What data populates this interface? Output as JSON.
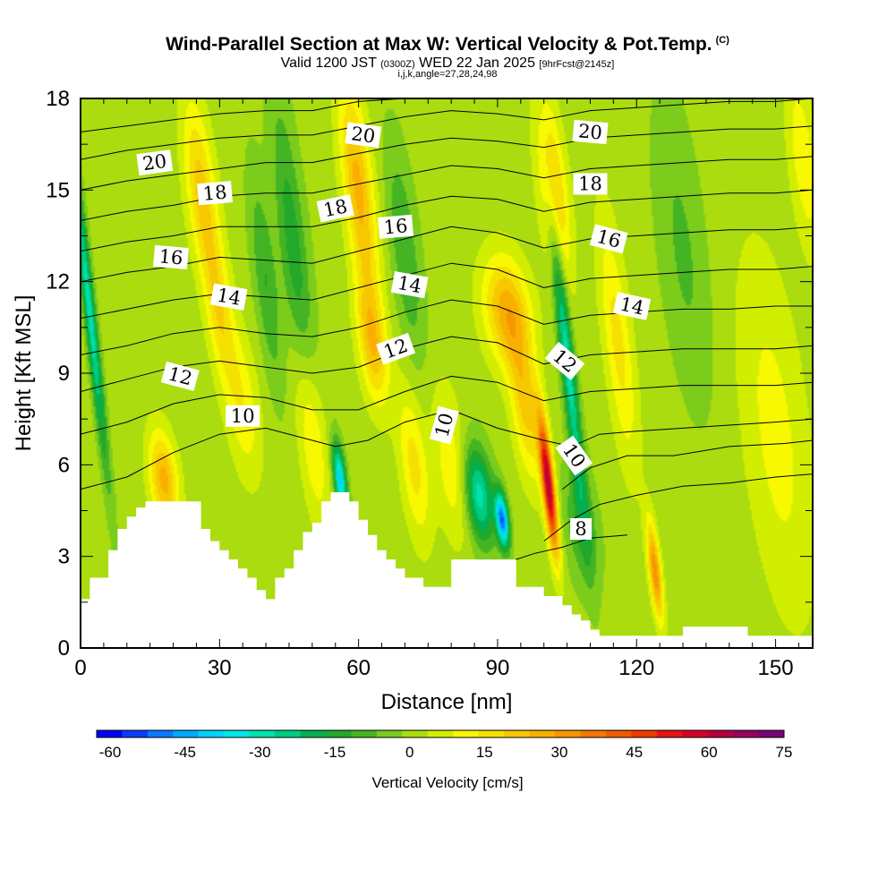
{
  "header": {
    "title": "Wind-Parallel Section at Max W: Vertical Velocity & Pot.Temp.",
    "title_mark": "(C)",
    "valid_prefix": "Valid 1200 JST",
    "valid_utc": "(0300Z)",
    "valid_date": "WED 22 Jan 2025",
    "forecast": "[9hrFcst@2145z]",
    "indices": "i,j,k,angle=27,28,24,98"
  },
  "chart_data": {
    "type": "heatmap",
    "title": "Wind-Parallel Section at Max W: Vertical Velocity & Pot.Temp.",
    "xlabel": "Distance [nm]",
    "ylabel": "Height [Kft MSL]",
    "xlim": [
      0,
      158
    ],
    "ylim": [
      0,
      18
    ],
    "x_ticks": [
      0,
      30,
      60,
      90,
      120,
      150
    ],
    "y_ticks": [
      0,
      3,
      6,
      9,
      12,
      15,
      18
    ],
    "colorbar": {
      "label": "Vertical Velocity [cm/s]",
      "ticks": [
        -60,
        -45,
        -30,
        -15,
        0,
        15,
        30,
        45,
        60,
        75
      ],
      "range": [
        -60,
        75
      ],
      "step": 5,
      "colors": [
        "#0000ff",
        "#0a3cff",
        "#0a78ff",
        "#00aaff",
        "#00d2ff",
        "#00e6e6",
        "#00e0b0",
        "#00cc80",
        "#00b050",
        "#22a82a",
        "#44b424",
        "#7ccc1c",
        "#aadc10",
        "#d2ee00",
        "#f8f800",
        "#f5e100",
        "#f7c800",
        "#faaf00",
        "#f79600",
        "#f57800",
        "#f05a00",
        "#ee3c00",
        "#e61414",
        "#d2002a",
        "#b4003c",
        "#96005a",
        "#780078"
      ]
    },
    "terrain_x": [
      0,
      2,
      2,
      6,
      6,
      8,
      8,
      10,
      10,
      12,
      12,
      14,
      14,
      17,
      17,
      20,
      20,
      26,
      26,
      28,
      28,
      30,
      30,
      32,
      32,
      34,
      34,
      36,
      36,
      38,
      38,
      40,
      40,
      42,
      42,
      44,
      44,
      46,
      46,
      48,
      48,
      50,
      50,
      52,
      52,
      54,
      54,
      58,
      58,
      60,
      60,
      62,
      62,
      64,
      64,
      66,
      66,
      68,
      68,
      70,
      70,
      72,
      72,
      74,
      74,
      78,
      78,
      80,
      80,
      84,
      84,
      86,
      86,
      94,
      94,
      96,
      96,
      100,
      100,
      104,
      104,
      106,
      106,
      108,
      108,
      110,
      110,
      112,
      112,
      114,
      114,
      116,
      116,
      118,
      118,
      120,
      120,
      124,
      124,
      130,
      130,
      144,
      144,
      150,
      150,
      158
    ],
    "terrain_y": [
      1.6,
      1.6,
      2.3,
      2.3,
      3.2,
      3.2,
      3.9,
      3.9,
      4.3,
      4.3,
      4.6,
      4.6,
      4.8,
      4.8,
      4.8,
      4.8,
      4.8,
      4.8,
      3.9,
      3.9,
      3.5,
      3.5,
      3.2,
      3.2,
      2.9,
      2.9,
      2.6,
      2.6,
      2.3,
      2.3,
      1.9,
      1.9,
      1.6,
      1.6,
      2.3,
      2.3,
      2.6,
      2.6,
      3.2,
      3.2,
      3.8,
      3.8,
      4.1,
      4.1,
      4.8,
      4.8,
      5.1,
      5.1,
      4.8,
      4.8,
      4.2,
      4.2,
      3.7,
      3.7,
      3.2,
      3.2,
      2.9,
      2.9,
      2.6,
      2.6,
      2.3,
      2.3,
      2.3,
      2.3,
      2.0,
      2.0,
      2.0,
      2.0,
      2.9,
      2.9,
      2.9,
      2.9,
      2.9,
      2.9,
      2.0,
      2.0,
      2.0,
      2.0,
      1.7,
      1.7,
      1.4,
      1.4,
      1.1,
      1.1,
      0.9,
      0.9,
      0.6,
      0.6,
      0.4,
      0.4,
      0.4,
      0.4,
      0.4,
      0.4,
      0.4,
      0.4,
      0.4,
      0.4,
      0.4,
      0.4,
      0.7,
      0.7,
      0.4,
      0.4,
      0.4,
      0.4
    ],
    "w_features": [
      {
        "x": 2,
        "y": 11,
        "w": -30,
        "sx": 1.2,
        "sy": 5
      },
      {
        "x": 18,
        "y": 5.5,
        "w": 25,
        "sx": 3,
        "sy": 1.6
      },
      {
        "x": 26,
        "y": 15,
        "w": 20,
        "sx": 3.2,
        "sy": 3
      },
      {
        "x": 30,
        "y": 11,
        "w": 15,
        "sx": 2.8,
        "sy": 2.5
      },
      {
        "x": 35,
        "y": 8,
        "w": 12,
        "sx": 3.5,
        "sy": 2.5
      },
      {
        "x": 40,
        "y": 12,
        "w": -12,
        "sx": 2.5,
        "sy": 3.5
      },
      {
        "x": 46,
        "y": 13,
        "w": -15,
        "sx": 3,
        "sy": 5
      },
      {
        "x": 50,
        "y": 7,
        "w": 15,
        "sx": 3,
        "sy": 3
      },
      {
        "x": 56,
        "y": 5.5,
        "w": -40,
        "sx": 1.3,
        "sy": 1.2
      },
      {
        "x": 60,
        "y": 15,
        "w": 25,
        "sx": 3.2,
        "sy": 3.5
      },
      {
        "x": 63,
        "y": 10,
        "w": 22,
        "sx": 3,
        "sy": 2
      },
      {
        "x": 70,
        "y": 13,
        "w": -12,
        "sx": 3,
        "sy": 3.5
      },
      {
        "x": 72,
        "y": 6,
        "w": 15,
        "sx": 3,
        "sy": 2.5
      },
      {
        "x": 80,
        "y": 6,
        "w": 12,
        "sx": 3.5,
        "sy": 2.5
      },
      {
        "x": 86,
        "y": 5,
        "w": -30,
        "sx": 3,
        "sy": 1.6
      },
      {
        "x": 91,
        "y": 4.2,
        "w": -50,
        "sx": 1.3,
        "sy": 0.9
      },
      {
        "x": 92,
        "y": 11,
        "w": 25,
        "sx": 5,
        "sy": 1.8
      },
      {
        "x": 96,
        "y": 8,
        "w": 20,
        "sx": 3,
        "sy": 2.5
      },
      {
        "x": 101,
        "y": 5.3,
        "w": 60,
        "sx": 1.3,
        "sy": 2.2
      },
      {
        "x": 102,
        "y": 15,
        "w": 22,
        "sx": 3,
        "sy": 3
      },
      {
        "x": 105,
        "y": 9.5,
        "w": -30,
        "sx": 1.5,
        "sy": 5
      },
      {
        "x": 108,
        "y": 4,
        "w": -12,
        "sx": 3.5,
        "sy": 2
      },
      {
        "x": 116,
        "y": 10,
        "w": 15,
        "sx": 3,
        "sy": 4
      },
      {
        "x": 124,
        "y": 2.5,
        "w": 32,
        "sx": 1.3,
        "sy": 1.6
      },
      {
        "x": 130,
        "y": 13,
        "w": -8,
        "sx": 5,
        "sy": 5
      },
      {
        "x": 150,
        "y": 7,
        "w": 10,
        "sx": 7,
        "sy": 6
      },
      {
        "x": 156,
        "y": 16,
        "w": 12,
        "sx": 3,
        "sy": 3
      }
    ],
    "theta_contours": [
      {
        "level": 6,
        "x": [
          86,
          92,
          98,
          104,
          110,
          118
        ],
        "y": [
          2.6,
          2.8,
          3.1,
          3.3,
          3.6,
          3.7
        ]
      },
      {
        "level": 8,
        "x": [
          100,
          106,
          112,
          120,
          130,
          140,
          150,
          158
        ],
        "y": [
          3.5,
          4.2,
          4.7,
          5.0,
          5.3,
          5.4,
          5.6,
          5.7
        ]
      },
      {
        "level": 9,
        "x": [
          104,
          110,
          118,
          128,
          140,
          152,
          158
        ],
        "y": [
          5.2,
          5.9,
          6.3,
          6.3,
          6.6,
          6.7,
          6.8
        ]
      },
      {
        "level": 10,
        "x": [
          0,
          10,
          20,
          30,
          40,
          50,
          55,
          62,
          70,
          80,
          90,
          100,
          106,
          112,
          120,
          130,
          140,
          150,
          158
        ],
        "y": [
          5.2,
          5.6,
          6.4,
          7.0,
          7.2,
          6.8,
          6.6,
          6.8,
          7.4,
          7.8,
          7.2,
          6.8,
          6.6,
          7.0,
          7.1,
          7.2,
          7.3,
          7.4,
          7.5
        ]
      },
      {
        "level": 11,
        "x": [
          0,
          10,
          20,
          30,
          40,
          50,
          60,
          70,
          80,
          90,
          100,
          110,
          120,
          130,
          140,
          150,
          158
        ],
        "y": [
          7.0,
          7.4,
          8.0,
          8.3,
          8.2,
          7.8,
          7.8,
          8.4,
          8.9,
          8.7,
          8.1,
          8.4,
          8.5,
          8.6,
          8.6,
          8.6,
          8.7
        ]
      },
      {
        "level": 12,
        "x": [
          0,
          10,
          20,
          30,
          40,
          50,
          60,
          70,
          80,
          90,
          100,
          110,
          120,
          130,
          140,
          150,
          158
        ],
        "y": [
          8.4,
          8.8,
          9.2,
          9.4,
          9.2,
          9.0,
          9.2,
          9.8,
          10.2,
          10.0,
          9.3,
          9.6,
          9.7,
          9.8,
          9.8,
          9.8,
          9.9
        ]
      },
      {
        "level": 13,
        "x": [
          0,
          10,
          20,
          30,
          40,
          50,
          60,
          70,
          80,
          90,
          100,
          110,
          120,
          130,
          140,
          150,
          158
        ],
        "y": [
          9.6,
          9.9,
          10.3,
          10.5,
          10.3,
          10.2,
          10.5,
          11.0,
          11.4,
          11.2,
          10.6,
          10.9,
          11.0,
          11.1,
          11.1,
          11.2,
          11.2
        ]
      },
      {
        "level": 14,
        "x": [
          0,
          10,
          20,
          30,
          40,
          50,
          60,
          70,
          80,
          90,
          100,
          110,
          120,
          130,
          140,
          150,
          158
        ],
        "y": [
          10.8,
          11.1,
          11.4,
          11.6,
          11.5,
          11.4,
          11.8,
          12.2,
          12.6,
          12.4,
          11.8,
          12.1,
          12.2,
          12.3,
          12.4,
          12.4,
          12.5
        ]
      },
      {
        "level": 15,
        "x": [
          0,
          10,
          20,
          30,
          40,
          50,
          60,
          70,
          80,
          90,
          100,
          110,
          120,
          130,
          140,
          150,
          158
        ],
        "y": [
          12.0,
          12.3,
          12.5,
          12.8,
          12.7,
          12.6,
          13.0,
          13.4,
          13.8,
          13.6,
          13.1,
          13.4,
          13.5,
          13.6,
          13.7,
          13.7,
          13.8
        ]
      },
      {
        "level": 16,
        "x": [
          0,
          10,
          20,
          30,
          40,
          50,
          60,
          70,
          80,
          90,
          100,
          110,
          120,
          130,
          140,
          150,
          158
        ],
        "y": [
          13.0,
          13.3,
          13.5,
          13.8,
          13.8,
          13.8,
          14.1,
          14.5,
          14.8,
          14.7,
          14.3,
          14.6,
          14.7,
          14.8,
          14.9,
          14.9,
          15.0
        ]
      },
      {
        "level": 17,
        "x": [
          0,
          10,
          20,
          30,
          40,
          50,
          60,
          70,
          80,
          90,
          100,
          110,
          120,
          130,
          140,
          150,
          158
        ],
        "y": [
          14.0,
          14.3,
          14.5,
          14.8,
          14.9,
          14.9,
          15.2,
          15.5,
          15.8,
          15.7,
          15.4,
          15.7,
          15.8,
          15.9,
          16.0,
          16.0,
          16.1
        ]
      },
      {
        "level": 18,
        "x": [
          0,
          10,
          20,
          30,
          40,
          50,
          60,
          70,
          80,
          90,
          100,
          110,
          120,
          130,
          140,
          150,
          158
        ],
        "y": [
          15.0,
          15.3,
          15.5,
          15.7,
          15.9,
          15.9,
          16.2,
          16.5,
          16.7,
          16.6,
          16.4,
          16.7,
          16.8,
          16.9,
          17.0,
          17.0,
          17.1
        ]
      },
      {
        "level": 19,
        "x": [
          0,
          10,
          20,
          30,
          40,
          50,
          60,
          70,
          80,
          90,
          100,
          110,
          120,
          130,
          140,
          150,
          158
        ],
        "y": [
          16.0,
          16.3,
          16.5,
          16.7,
          16.8,
          16.8,
          17.1,
          17.4,
          17.6,
          17.5,
          17.3,
          17.6,
          17.7,
          17.8,
          17.9,
          17.9,
          18.0
        ]
      },
      {
        "level": 20,
        "x": [
          0,
          10,
          20,
          30,
          40,
          50,
          60,
          70,
          80,
          90,
          100,
          110,
          120,
          130,
          140,
          150,
          158
        ],
        "y": [
          16.9,
          17.1,
          17.3,
          17.5,
          17.6,
          17.6,
          17.9,
          18.0,
          18.0,
          18.0,
          18.0,
          18.0,
          18.0,
          18.0,
          18.0,
          18.0,
          18.0
        ]
      }
    ],
    "contour_labels": [
      {
        "text": "20",
        "x": 16,
        "y": 15.9,
        "angle": -8
      },
      {
        "text": "18",
        "x": 29,
        "y": 14.9,
        "angle": -5
      },
      {
        "text": "16",
        "x": 19.5,
        "y": 12.8,
        "angle": 5
      },
      {
        "text": "14",
        "x": 32,
        "y": 11.5,
        "angle": 10
      },
      {
        "text": "12",
        "x": 21.5,
        "y": 8.9,
        "angle": 15
      },
      {
        "text": "10",
        "x": 35,
        "y": 7.6,
        "angle": 0
      },
      {
        "text": "20",
        "x": 61,
        "y": 16.8,
        "angle": 8
      },
      {
        "text": "18",
        "x": 55,
        "y": 14.4,
        "angle": -12
      },
      {
        "text": "16",
        "x": 68,
        "y": 13.8,
        "angle": -5
      },
      {
        "text": "14",
        "x": 71,
        "y": 11.9,
        "angle": 10
      },
      {
        "text": "12",
        "x": 68,
        "y": 9.8,
        "angle": -20
      },
      {
        "text": "10",
        "x": 78.5,
        "y": 7.3,
        "angle": -75
      },
      {
        "text": "20",
        "x": 110,
        "y": 16.9,
        "angle": 5
      },
      {
        "text": "18",
        "x": 110,
        "y": 15.2,
        "angle": 0
      },
      {
        "text": "16",
        "x": 114,
        "y": 13.4,
        "angle": 15
      },
      {
        "text": "14",
        "x": 119,
        "y": 11.2,
        "angle": 12
      },
      {
        "text": "12",
        "x": 104.5,
        "y": 9.4,
        "angle": 40
      },
      {
        "text": "10",
        "x": 106.5,
        "y": 6.3,
        "angle": 55
      },
      {
        "text": "8",
        "x": 108,
        "y": 3.9,
        "angle": 0
      }
    ]
  }
}
